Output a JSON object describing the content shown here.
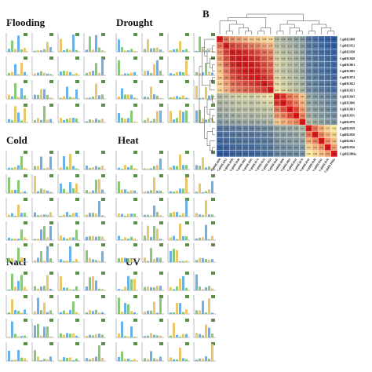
{
  "panel_a": {
    "groups": [
      {
        "title": "Flooding"
      },
      {
        "title": "Drought"
      },
      {
        "title": "Cold"
      },
      {
        "title": "Heat"
      },
      {
        "title": "Nacl"
      },
      {
        "title": "UV"
      }
    ],
    "bar_colors": [
      "#5aa9e6",
      "#7cc26a",
      "#e8c15a"
    ]
  },
  "panel_b": {
    "label": "B",
    "colors": {
      "high": "#d7191c",
      "mid": "#f7e9a0",
      "low": "#2c5aa0"
    }
  },
  "chart_data": {
    "type": "heatmap",
    "title": "",
    "rows": [
      "CqbHLH08",
      "CqbHLH12",
      "CqbHLH38",
      "CqbHLH48",
      "CqbHLH61",
      "CqbHLH95",
      "CqbHLH74",
      "CqbHLH22",
      "CqbHLH53",
      "CqbHLH45",
      "CqbHLH06",
      "CqbHLH63",
      "CqbHLH11",
      "CqbHLH70",
      "CqbHLH19",
      "CqbHLH30",
      "CqbHLH41",
      "CqbHLH16",
      "CqbHLH06a"
    ],
    "columns": [
      "CqbHLH08",
      "CqbHLH12",
      "CqbHLH38",
      "CqbHLH48",
      "CqbHLH61",
      "CqbHLH95",
      "CqbHLH74",
      "CqbHLH22",
      "CqbHLH53",
      "CqbHLH45",
      "CqbHLH06",
      "CqbHLH63",
      "CqbHLH11",
      "CqbHLH70",
      "CqbHLH19",
      "CqbHLH30",
      "CqbHLH41",
      "CqbHLH16",
      "CqbHLH06a"
    ],
    "values": [
      [
        1.0,
        0.64,
        0.55,
        0.52,
        0.46,
        0.41,
        0.4,
        0.38,
        0.36,
        0.12,
        0.1,
        0.08,
        0.05,
        0.02,
        -0.1,
        -0.12,
        -0.15,
        -0.18,
        -0.2
      ],
      [
        0.64,
        1.0,
        0.78,
        0.73,
        0.69,
        0.62,
        0.58,
        0.51,
        0.47,
        0.15,
        0.12,
        0.1,
        0.07,
        0.04,
        -0.08,
        -0.11,
        -0.13,
        -0.16,
        -0.19
      ],
      [
        0.55,
        0.78,
        1.0,
        0.88,
        0.84,
        0.79,
        0.73,
        0.66,
        0.6,
        0.18,
        0.14,
        0.12,
        0.09,
        0.05,
        -0.07,
        -0.1,
        -0.12,
        -0.14,
        -0.17
      ],
      [
        0.52,
        0.73,
        0.88,
        1.0,
        0.91,
        0.85,
        0.8,
        0.71,
        0.64,
        0.2,
        0.16,
        0.13,
        0.1,
        0.06,
        -0.06,
        -0.09,
        -0.11,
        -0.13,
        -0.16
      ],
      [
        0.46,
        0.69,
        0.84,
        0.91,
        1.0,
        0.89,
        0.83,
        0.75,
        0.68,
        0.21,
        0.17,
        0.14,
        0.11,
        0.07,
        -0.05,
        -0.08,
        -0.1,
        -0.12,
        -0.15
      ],
      [
        0.41,
        0.62,
        0.79,
        0.85,
        0.89,
        1.0,
        0.87,
        0.78,
        0.7,
        0.19,
        0.15,
        0.13,
        0.1,
        0.06,
        -0.06,
        -0.09,
        -0.11,
        -0.13,
        -0.16
      ],
      [
        0.4,
        0.58,
        0.73,
        0.8,
        0.83,
        0.87,
        1.0,
        0.82,
        0.74,
        0.22,
        0.18,
        0.15,
        0.12,
        0.08,
        -0.04,
        -0.07,
        -0.09,
        -0.11,
        -0.14
      ],
      [
        0.38,
        0.51,
        0.66,
        0.71,
        0.75,
        0.78,
        0.82,
        1.0,
        0.79,
        0.24,
        0.2,
        0.16,
        0.13,
        0.09,
        -0.03,
        -0.06,
        -0.08,
        -0.1,
        -0.13
      ],
      [
        0.36,
        0.47,
        0.6,
        0.64,
        0.68,
        0.7,
        0.74,
        0.79,
        1.0,
        0.27,
        0.22,
        0.18,
        0.14,
        0.1,
        -0.02,
        -0.05,
        -0.07,
        -0.09,
        -0.12
      ],
      [
        0.12,
        0.15,
        0.18,
        0.2,
        0.21,
        0.19,
        0.22,
        0.24,
        0.27,
        1.0,
        0.81,
        0.63,
        0.55,
        0.41,
        0.05,
        0.02,
        0.0,
        -0.03,
        -0.05
      ],
      [
        0.1,
        0.12,
        0.14,
        0.16,
        0.17,
        0.15,
        0.18,
        0.2,
        0.22,
        0.81,
        1.0,
        0.72,
        0.61,
        0.47,
        0.06,
        0.03,
        0.01,
        -0.02,
        -0.04
      ],
      [
        0.08,
        0.1,
        0.12,
        0.13,
        0.14,
        0.13,
        0.15,
        0.16,
        0.18,
        0.63,
        0.72,
        1.0,
        0.74,
        0.52,
        0.07,
        0.04,
        0.02,
        -0.01,
        -0.03
      ],
      [
        0.05,
        0.07,
        0.09,
        0.1,
        0.11,
        0.1,
        0.12,
        0.13,
        0.14,
        0.55,
        0.61,
        0.74,
        1.0,
        0.58,
        0.08,
        0.05,
        0.03,
        0.0,
        -0.02
      ],
      [
        0.02,
        0.04,
        0.05,
        0.06,
        0.07,
        0.06,
        0.08,
        0.09,
        0.1,
        0.41,
        0.47,
        0.52,
        0.58,
        1.0,
        0.12,
        0.08,
        0.05,
        0.02,
        0.0
      ],
      [
        -0.1,
        -0.08,
        -0.07,
        -0.06,
        -0.05,
        -0.06,
        -0.04,
        -0.03,
        -0.02,
        0.05,
        0.06,
        0.07,
        0.08,
        0.12,
        1.0,
        0.62,
        0.48,
        0.37,
        0.3
      ],
      [
        -0.12,
        -0.11,
        -0.1,
        -0.09,
        -0.08,
        -0.09,
        -0.07,
        -0.06,
        -0.05,
        0.02,
        0.03,
        0.04,
        0.05,
        0.08,
        0.62,
        1.0,
        0.58,
        0.45,
        0.36
      ],
      [
        -0.15,
        -0.13,
        -0.12,
        -0.11,
        -0.1,
        -0.11,
        -0.09,
        -0.08,
        -0.07,
        0.0,
        0.01,
        0.02,
        0.03,
        0.05,
        0.48,
        0.58,
        1.0,
        0.55,
        0.42
      ],
      [
        -0.18,
        -0.16,
        -0.14,
        -0.13,
        -0.12,
        -0.13,
        -0.11,
        -0.1,
        -0.09,
        -0.03,
        -0.02,
        -0.01,
        0.0,
        0.02,
        0.37,
        0.45,
        0.55,
        1.0,
        0.51
      ],
      [
        -0.2,
        -0.19,
        -0.17,
        -0.16,
        -0.15,
        -0.16,
        -0.14,
        -0.13,
        -0.12,
        -0.05,
        -0.04,
        -0.03,
        -0.02,
        0.0,
        0.3,
        0.36,
        0.42,
        0.51,
        1.0
      ]
    ],
    "color_scale": "red-yellow-blue",
    "legend": "none"
  }
}
